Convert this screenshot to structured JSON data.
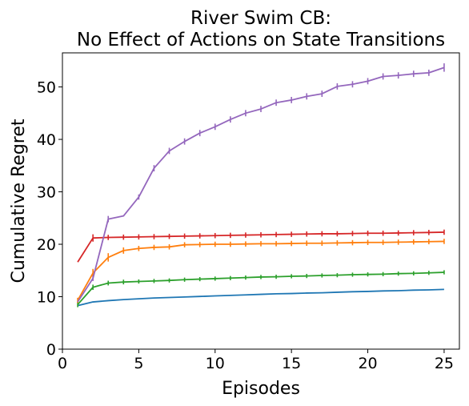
{
  "chart_data": {
    "type": "line",
    "title_line1": "River Swim CB:",
    "title_line2": "No Effect of Actions on State Transitions",
    "xlabel": "Episodes",
    "ylabel": "Cumulative Regret",
    "xlim": [
      0,
      26
    ],
    "ylim": [
      0,
      56.5
    ],
    "xticks": [
      0,
      5,
      10,
      15,
      20,
      25
    ],
    "yticks": [
      0,
      10,
      20,
      30,
      40,
      50
    ],
    "grid": false,
    "legend": null,
    "x": [
      1,
      2,
      3,
      4,
      5,
      6,
      7,
      8,
      9,
      10,
      11,
      12,
      13,
      14,
      15,
      16,
      17,
      18,
      19,
      20,
      21,
      22,
      23,
      24,
      25
    ],
    "series": [
      {
        "color": "#1f77b4",
        "values": [
          8.3,
          9.0,
          9.25,
          9.45,
          9.6,
          9.75,
          9.85,
          9.95,
          10.05,
          10.15,
          10.25,
          10.35,
          10.45,
          10.55,
          10.6,
          10.7,
          10.75,
          10.85,
          10.95,
          11.0,
          11.1,
          11.15,
          11.25,
          11.3,
          11.4
        ],
        "error": [
          0,
          0,
          0,
          0,
          0,
          0,
          0,
          0,
          0,
          0,
          0,
          0,
          0,
          0,
          0,
          0,
          0,
          0,
          0,
          0,
          0,
          0,
          0,
          0,
          0
        ]
      },
      {
        "color": "#2ca02c",
        "values": [
          8.5,
          11.8,
          12.6,
          12.8,
          12.9,
          13.0,
          13.1,
          13.25,
          13.35,
          13.45,
          13.55,
          13.65,
          13.75,
          13.8,
          13.9,
          13.95,
          14.05,
          14.1,
          14.2,
          14.25,
          14.3,
          14.4,
          14.45,
          14.55,
          14.65
        ],
        "error": [
          0.5,
          0.5,
          0.45,
          0.45,
          0.4,
          0.4,
          0.4,
          0.4,
          0.4,
          0.4,
          0.4,
          0.4,
          0.4,
          0.4,
          0.4,
          0.4,
          0.4,
          0.4,
          0.4,
          0.4,
          0.4,
          0.4,
          0.4,
          0.4,
          0.4
        ]
      },
      {
        "color": "#ff7f0e",
        "values": [
          9.3,
          14.5,
          17.5,
          18.8,
          19.2,
          19.4,
          19.5,
          19.9,
          19.95,
          20.0,
          20.0,
          20.05,
          20.1,
          20.1,
          20.15,
          20.2,
          20.2,
          20.25,
          20.3,
          20.35,
          20.35,
          20.4,
          20.45,
          20.5,
          20.55
        ],
        "error": [
          0.5,
          0.8,
          0.8,
          0.6,
          0.5,
          0.5,
          0.5,
          0.5,
          0.5,
          0.5,
          0.5,
          0.5,
          0.5,
          0.5,
          0.5,
          0.5,
          0.5,
          0.5,
          0.5,
          0.5,
          0.5,
          0.5,
          0.5,
          0.5,
          0.5
        ]
      },
      {
        "color": "#d62728",
        "values": [
          16.6,
          21.2,
          21.3,
          21.35,
          21.4,
          21.45,
          21.5,
          21.55,
          21.6,
          21.65,
          21.7,
          21.75,
          21.8,
          21.85,
          21.9,
          21.95,
          22.0,
          22.0,
          22.05,
          22.1,
          22.1,
          22.15,
          22.2,
          22.25,
          22.3
        ],
        "error": [
          0,
          0.7,
          0.5,
          0.5,
          0.5,
          0.5,
          0.5,
          0.5,
          0.5,
          0.5,
          0.5,
          0.5,
          0.5,
          0.5,
          0.5,
          0.5,
          0.5,
          0.5,
          0.5,
          0.5,
          0.5,
          0.5,
          0.5,
          0.5,
          0.5
        ]
      },
      {
        "color": "#9467bd",
        "values": [
          9.0,
          13.5,
          24.8,
          25.4,
          29.0,
          34.5,
          37.8,
          39.6,
          41.2,
          42.4,
          43.8,
          45.0,
          45.8,
          47.0,
          47.5,
          48.2,
          48.7,
          50.1,
          50.5,
          51.1,
          52.0,
          52.2,
          52.5,
          52.7,
          53.7
        ],
        "error": [
          0,
          0.5,
          0.6,
          0,
          0.5,
          0.6,
          0.6,
          0.6,
          0.6,
          0.6,
          0.6,
          0.6,
          0.6,
          0.6,
          0.6,
          0.6,
          0.6,
          0.6,
          0.6,
          0.6,
          0.6,
          0.6,
          0.6,
          0.6,
          0.8
        ]
      }
    ]
  }
}
